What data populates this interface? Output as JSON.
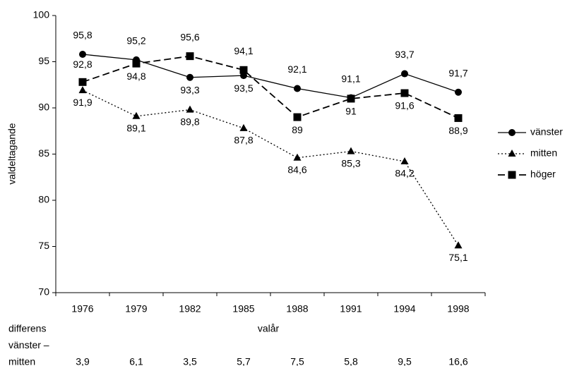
{
  "chart_data": {
    "type": "line",
    "categories": [
      "1976",
      "1979",
      "1982",
      "1985",
      "1988",
      "1991",
      "1994",
      "1998"
    ],
    "series": [
      {
        "name": "vänster",
        "color": "#000000",
        "line_style": "solid",
        "marker": "circle",
        "values": [
          95.8,
          95.2,
          93.3,
          93.5,
          92.1,
          91.1,
          93.7,
          91.7
        ],
        "value_labels": [
          "95,8",
          "95,2",
          "93,3",
          "93,5",
          "92,1",
          "91,1",
          "93,7",
          "91,7"
        ]
      },
      {
        "name": "mitten",
        "color": "#000000",
        "line_style": "dotted",
        "marker": "triangle",
        "values": [
          91.9,
          89.1,
          89.8,
          87.8,
          84.6,
          85.3,
          84.2,
          75.1
        ],
        "value_labels": [
          "91,9",
          "89,1",
          "89,8",
          "87,8",
          "84,6",
          "85,3",
          "84,2",
          "75,1"
        ]
      },
      {
        "name": "höger",
        "color": "#000000",
        "line_style": "dashed",
        "marker": "square",
        "values": [
          92.8,
          94.8,
          95.6,
          94.1,
          89,
          91,
          91.6,
          88.9
        ],
        "value_labels": [
          "92,8",
          "94,8",
          "95,6",
          "94,1",
          "89",
          "91",
          "91,6",
          "88,9"
        ]
      }
    ],
    "y_label": "valdeltagande",
    "x_label": "valår",
    "ylim": [
      70,
      100
    ],
    "yticks": [
      70,
      75,
      80,
      85,
      90,
      95,
      100
    ],
    "legend": "right",
    "difference_row": {
      "label": [
        "differens",
        "vänster –",
        "mitten"
      ],
      "values": [
        "3,9",
        "6,1",
        "3,5",
        "5,7",
        "7,5",
        "5,8",
        "9,5",
        "16,6"
      ]
    }
  }
}
